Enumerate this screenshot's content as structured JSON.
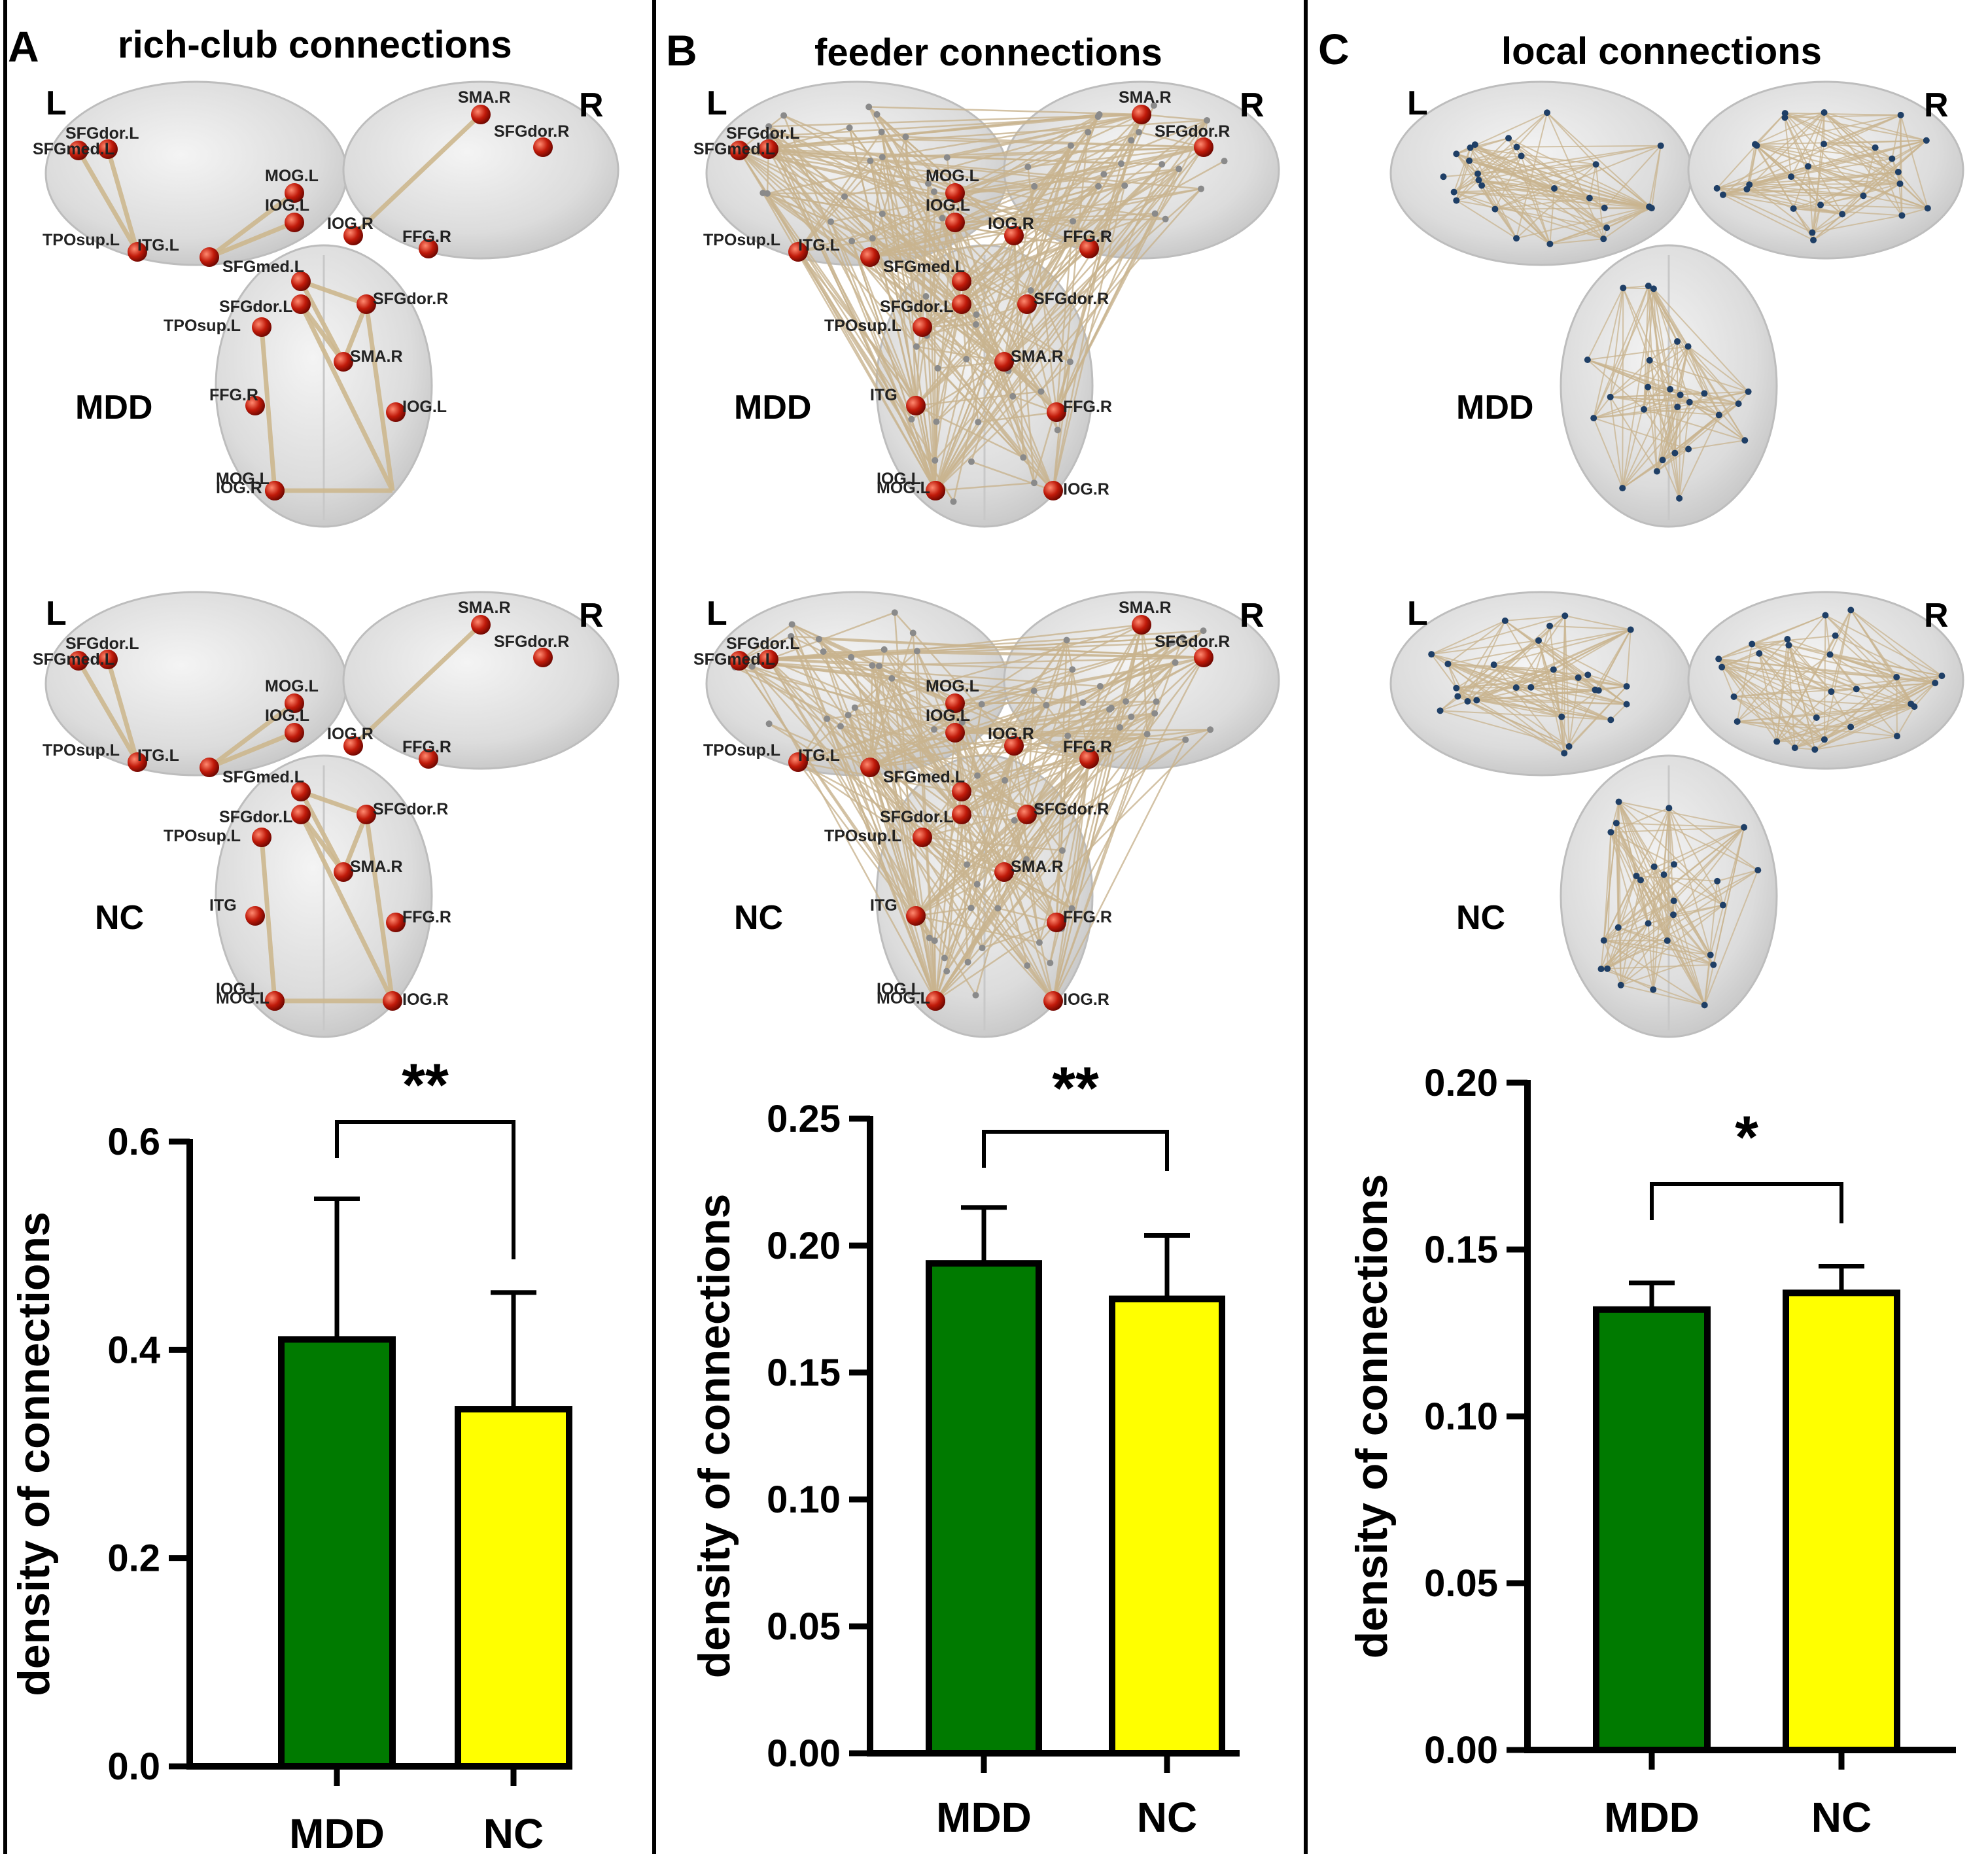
{
  "figure": {
    "panels": [
      {
        "letter": "A",
        "title": "rich-club connections",
        "brain_rows": [
          {
            "group": "MDD",
            "left_label": "L",
            "right_label": "R",
            "node_labels": [
              "SFGdor.L",
              "SFGmed.L",
              "SMA.R",
              "SFGdor.R",
              "MOG.L",
              "IOG.L",
              "TPOsup.L",
              "ITG.L",
              "IOG.R",
              "FFG.R",
              "SFGmed.L",
              "SFGdor.L",
              "SFGdor.R",
              "TPOsup.L",
              "SMA.R",
              "FFG.R",
              "IOG.L",
              "MOG.L",
              "IOG.R"
            ]
          },
          {
            "group": "NC",
            "left_label": "L",
            "right_label": "R",
            "node_labels": [
              "SFGdor.L",
              "SFGmed.L",
              "SMA.R",
              "SFGdor.R",
              "MOG.L",
              "IOG.L",
              "TPOsup.L",
              "ITG.L",
              "IOG.R",
              "FFG.R",
              "SFGmed.L",
              "SFGdor.L",
              "SFGdor.R",
              "TPOsup.L",
              "SMA.R",
              "ITG",
              "FFG.R",
              "IOG.L",
              "MOG.L",
              "IOG.R"
            ]
          }
        ]
      },
      {
        "letter": "B",
        "title": "feeder connections",
        "brain_rows": [
          {
            "group": "MDD",
            "left_label": "L",
            "right_label": "R",
            "node_labels": [
              "SFGdor.L",
              "SFGmed.L",
              "SMA.R",
              "SFGdor.R",
              "MOG.L",
              "IOG.L",
              "TPOsup.L",
              "ITG.L",
              "IOG.R",
              "FFG.R",
              "SFGmed.L",
              "SFGdor.L",
              "SFGdor.R",
              "TPOsup.L",
              "SMA.R",
              "ITG",
              "FFG.R",
              "IOG.L",
              "MOG.L",
              "IOG.R"
            ]
          },
          {
            "group": "NC",
            "left_label": "L",
            "right_label": "R",
            "node_labels": [
              "SFGdor.L",
              "SFGmed.L",
              "SMA.R",
              "SFGdor.R",
              "MOG.L",
              "IOG.L",
              "TPOsup.L",
              "ITG.L",
              "IOG.R",
              "FFG.R",
              "SFGmed.L",
              "SFGdor.L",
              "SFGdor.R",
              "TPOsup.L",
              "SMA.R",
              "ITG",
              "FFG.R",
              "IOG.L",
              "MOG.L",
              "IOG.R"
            ]
          }
        ]
      },
      {
        "letter": "C",
        "title": "local connections",
        "brain_rows": [
          {
            "group": "MDD",
            "left_label": "L",
            "right_label": "R",
            "node_labels": []
          },
          {
            "group": "NC",
            "left_label": "L",
            "right_label": "R",
            "node_labels": []
          }
        ]
      }
    ]
  },
  "chart_data": [
    {
      "type": "bar",
      "panel": "A",
      "title": "rich-club connections",
      "categories": [
        "MDD",
        "NC"
      ],
      "values": [
        0.41,
        0.343
      ],
      "errors": [
        0.135,
        0.112
      ],
      "colors": [
        "#007A00",
        "#FFFF00"
      ],
      "ylabel": "density of connections",
      "xlabel": "",
      "ylim": [
        0,
        0.6
      ],
      "yticks": [
        0,
        0.2,
        0.4,
        0.6
      ],
      "tick_labels": [
        "0.0",
        "0.2",
        "0.4",
        "0.6"
      ],
      "significance": "**"
    },
    {
      "type": "bar",
      "panel": "B",
      "title": "feeder connections",
      "categories": [
        "MDD",
        "NC"
      ],
      "values": [
        0.193,
        0.179
      ],
      "errors": [
        0.022,
        0.025
      ],
      "colors": [
        "#007A00",
        "#FFFF00"
      ],
      "ylabel": "density of connections",
      "xlabel": "",
      "ylim": [
        0,
        0.25
      ],
      "yticks": [
        0,
        0.05,
        0.1,
        0.15,
        0.2,
        0.25
      ],
      "tick_labels": [
        "0.00",
        "0.05",
        "0.10",
        "0.15",
        "0.20",
        "0.25"
      ],
      "significance": "**"
    },
    {
      "type": "bar",
      "panel": "C",
      "title": "local connections",
      "categories": [
        "MDD",
        "NC"
      ],
      "values": [
        0.132,
        0.137
      ],
      "errors": [
        0.008,
        0.008
      ],
      "colors": [
        "#007A00",
        "#FFFF00"
      ],
      "ylabel": "density of connections",
      "xlabel": "",
      "ylim": [
        0,
        0.2
      ],
      "yticks": [
        0,
        0.05,
        0.1,
        0.15,
        0.2
      ],
      "tick_labels": [
        "0.00",
        "0.05",
        "0.10",
        "0.15",
        "0.20"
      ],
      "significance": "*"
    }
  ]
}
